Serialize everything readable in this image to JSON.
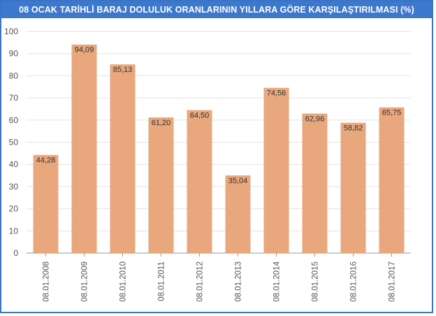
{
  "chart_data": {
    "type": "bar",
    "title": "08 OCAK TARİHLİ BARAJ DOLULUK ORANLARININ YILLARA GÖRE KARŞILAŞTIRILMASI (%)",
    "categories": [
      "08.01.2008",
      "08.01.2009",
      "08.01.2010",
      "08.01.2011",
      "08.01.2012",
      "08.01.2013",
      "08.01.2014",
      "08.01.2015",
      "08.01.2016",
      "08.01.2017"
    ],
    "values": [
      44.28,
      94.09,
      85.13,
      61.2,
      64.5,
      35.04,
      74.56,
      62.96,
      58.82,
      65.75
    ],
    "value_labels": [
      "44,28",
      "94,09",
      "85,13",
      "61,20",
      "64,50",
      "35,04",
      "74,56",
      "62,96",
      "58,82",
      "65,75"
    ],
    "ylim": [
      0,
      100
    ],
    "yticks": [
      0,
      10,
      20,
      30,
      40,
      50,
      60,
      70,
      80,
      90,
      100
    ],
    "grid": true,
    "bar_color": "#e8a77c",
    "title_bar_color": "#3e78cc"
  }
}
